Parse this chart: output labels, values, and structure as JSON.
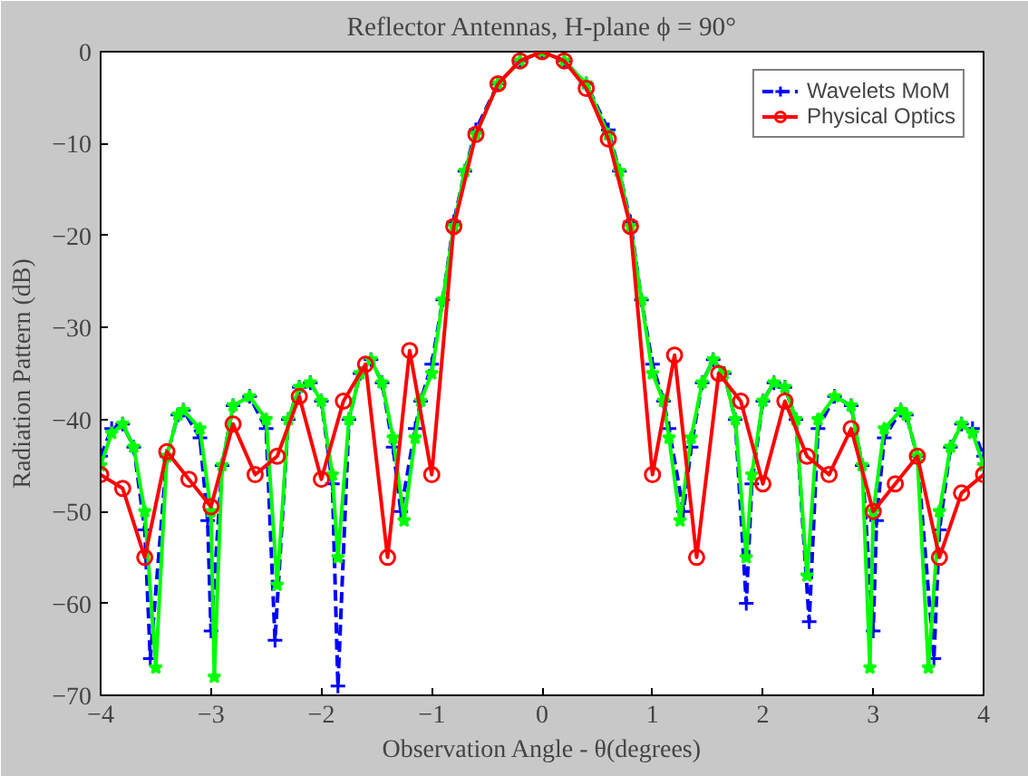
{
  "chart_data": {
    "type": "line",
    "title": "Reflector Antennas, H-plane ϕ = 90°",
    "xlabel": "Observation Angle - θ(degrees)",
    "ylabel": "Radiation Pattern (dB)",
    "xlim": [
      -4,
      4
    ],
    "ylim": [
      -70,
      0
    ],
    "xticks": [
      -4,
      -3,
      -2,
      -1,
      0,
      1,
      2,
      3,
      4
    ],
    "yticks": [
      -70,
      -60,
      -50,
      -40,
      -30,
      -20,
      -10,
      0
    ],
    "grid": false,
    "legend": "top right",
    "series": [
      {
        "name": "Wavelets MoM",
        "color": "#0000ff",
        "marker": "cross",
        "line_style": "dashed",
        "x": [
          -4,
          -3.9,
          -3.8,
          -3.7,
          -3.6,
          -3.55,
          -3.4,
          -3.3,
          -3.25,
          -3.1,
          -3.03,
          -3.0,
          -2.9,
          -2.8,
          -2.65,
          -2.5,
          -2.42,
          -2.3,
          -2.2,
          -2.1,
          -2.0,
          -1.9,
          -1.85,
          -1.75,
          -1.65,
          -1.55,
          -1.45,
          -1.35,
          -1.28,
          -1.15,
          -1.1,
          -1.0,
          -0.9,
          -0.8,
          -0.7,
          -0.6,
          -0.4,
          -0.2,
          0,
          0.2,
          0.4,
          0.6,
          0.7,
          0.8,
          0.9,
          1.0,
          1.1,
          1.15,
          1.28,
          1.35,
          1.45,
          1.55,
          1.65,
          1.75,
          1.85,
          1.9,
          2.0,
          2.1,
          2.2,
          2.3,
          2.42,
          2.5,
          2.65,
          2.8,
          2.9,
          3.0,
          3.03,
          3.1,
          3.25,
          3.3,
          3.4,
          3.55,
          3.6,
          3.7,
          3.8,
          3.9,
          4
        ],
        "values": [
          -44,
          -41,
          -40.5,
          -43,
          -52,
          -66,
          -44,
          -39.5,
          -39,
          -42,
          -51,
          -63,
          -45,
          -38.5,
          -37.5,
          -41,
          -64,
          -40,
          -36.5,
          -36,
          -38,
          -47,
          -69,
          -40,
          -35,
          -33.5,
          -36,
          -43,
          -50,
          -41,
          -38,
          -34,
          -27,
          -18.5,
          -13,
          -8.5,
          -3.5,
          -1,
          0,
          -1,
          -3.5,
          -8.5,
          -13,
          -18.5,
          -27,
          -34,
          -38,
          -41,
          -50,
          -43,
          -36,
          -33.5,
          -35,
          -40,
          -60,
          -47,
          -38,
          -36,
          -36.5,
          -40,
          -62,
          -41,
          -37.5,
          -38.5,
          -45,
          -63,
          -51,
          -42,
          -39,
          -39.5,
          -44,
          -66,
          -52,
          -43,
          -40.5,
          -41,
          -44
        ]
      },
      {
        "color": "#00ff00",
        "marker": "star",
        "line_style": "solid",
        "x": [
          -4,
          -3.9,
          -3.8,
          -3.7,
          -3.6,
          -3.5,
          -3.4,
          -3.3,
          -3.25,
          -3.1,
          -3.0,
          -2.97,
          -2.9,
          -2.8,
          -2.65,
          -2.5,
          -2.4,
          -2.3,
          -2.2,
          -2.1,
          -2.0,
          -1.9,
          -1.85,
          -1.75,
          -1.65,
          -1.55,
          -1.45,
          -1.35,
          -1.25,
          -1.15,
          -1.1,
          -1.0,
          -0.9,
          -0.8,
          -0.7,
          -0.6,
          -0.4,
          -0.2,
          0,
          0.2,
          0.4,
          0.6,
          0.7,
          0.8,
          0.9,
          1.0,
          1.1,
          1.15,
          1.25,
          1.35,
          1.45,
          1.55,
          1.65,
          1.75,
          1.85,
          1.9,
          2.0,
          2.1,
          2.2,
          2.3,
          2.4,
          2.5,
          2.65,
          2.8,
          2.9,
          2.97,
          3.0,
          3.1,
          3.25,
          3.3,
          3.4,
          3.5,
          3.6,
          3.7,
          3.8,
          3.9,
          4
        ],
        "values": [
          -45,
          -41.5,
          -40.5,
          -43,
          -50,
          -67,
          -44,
          -39.5,
          -39,
          -41,
          -50,
          -68,
          -45,
          -38.5,
          -37.5,
          -40,
          -58,
          -40,
          -36.5,
          -36,
          -38,
          -46,
          -55,
          -40,
          -35,
          -33.5,
          -36,
          -42,
          -51,
          -42,
          -38,
          -35,
          -27,
          -19,
          -13,
          -9,
          -3.5,
          -1,
          0,
          -1,
          -3.5,
          -9,
          -13,
          -19,
          -27,
          -35,
          -38,
          -42,
          -51,
          -42,
          -36,
          -33.5,
          -35,
          -40,
          -55,
          -46,
          -38,
          -36,
          -36.5,
          -40,
          -57,
          -40,
          -37.5,
          -38.5,
          -45,
          -67,
          -50,
          -41,
          -39,
          -39.5,
          -44,
          -67,
          -50,
          -43,
          -40.5,
          -41.5,
          -45
        ]
      },
      {
        "name": "Physical Optics",
        "color": "#ff0000",
        "marker": "circle",
        "line_style": "solid",
        "x": [
          -4,
          -3.8,
          -3.6,
          -3.4,
          -3.2,
          -3.0,
          -2.8,
          -2.6,
          -2.4,
          -2.2,
          -2.0,
          -1.8,
          -1.6,
          -1.4,
          -1.2,
          -1.0,
          -0.8,
          -0.6,
          -0.4,
          -0.2,
          0,
          0.2,
          0.4,
          0.6,
          0.8,
          1.0,
          1.2,
          1.4,
          1.6,
          1.8,
          2.0,
          2.2,
          2.4,
          2.6,
          2.8,
          3.0,
          3.2,
          3.4,
          3.6,
          3.8,
          4.0
        ],
        "values": [
          -46,
          -47.5,
          -55,
          -43.5,
          -46.5,
          -49.5,
          -40.5,
          -46,
          -44,
          -37.5,
          -46.5,
          -38,
          -34,
          -55,
          -32.5,
          -46,
          -19,
          -9,
          -3.5,
          -1,
          0,
          -1,
          -4,
          -9.5,
          -19,
          -46,
          -33,
          -55,
          -35,
          -38,
          -47,
          -38,
          -44,
          -46,
          -41,
          -50,
          -47,
          -44,
          -55,
          -48,
          -46
        ]
      }
    ]
  }
}
